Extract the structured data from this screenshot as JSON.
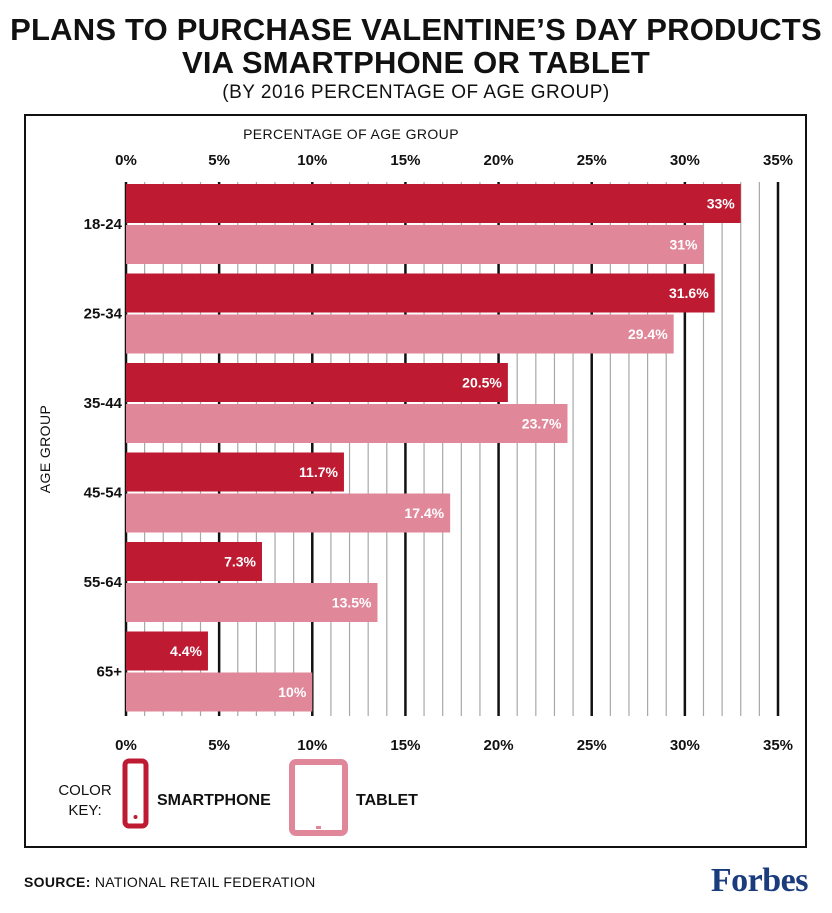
{
  "header": {
    "title_line1": "PLANS TO PURCHASE VALENTINE’S DAY PRODUCTS",
    "title_line2": "VIA SMARTPHONE OR TABLET",
    "subtitle": "(BY 2016 PERCENTAGE OF AGE GROUP)"
  },
  "chart_data": {
    "type": "bar",
    "orientation": "horizontal",
    "xlabel": "PERCENTAGE OF AGE GROUP",
    "ylabel": "AGE GROUP",
    "xlim": [
      0,
      35
    ],
    "x_ticks": [
      "0%",
      "5%",
      "10%",
      "15%",
      "20%",
      "25%",
      "30%",
      "35%"
    ],
    "categories": [
      "18-24",
      "25-34",
      "35-44",
      "45-54",
      "55-64",
      "65+"
    ],
    "series": [
      {
        "name": "SMARTPHONE",
        "color": "#be1a32",
        "values": [
          33,
          31.6,
          20.5,
          11.7,
          7.3,
          4.4
        ],
        "labels": [
          "33%",
          "31.6%",
          "20.5%",
          "11.7%",
          "7.3%",
          "4.4%"
        ]
      },
      {
        "name": "TABLET",
        "color": "#e0879a",
        "values": [
          31,
          29.4,
          23.7,
          17.4,
          13.5,
          10
        ],
        "labels": [
          "31%",
          "29.4%",
          "23.7%",
          "17.4%",
          "13.5%",
          "10%"
        ]
      }
    ],
    "grid": true,
    "legend": {
      "label_line1": "COLOR",
      "label_line2": "KEY:",
      "placement": "bottom-left"
    }
  },
  "footer": {
    "source_label": "SOURCE:",
    "source_text": "NATIONAL RETAIL FEDERATION",
    "brand": "Forbes"
  }
}
